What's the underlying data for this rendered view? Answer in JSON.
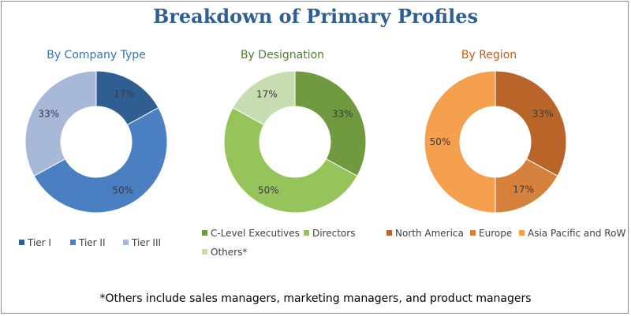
{
  "title": "Breakdown of Primary Profiles",
  "footnote": "*Others include sales managers, marketing managers, and product managers",
  "chart_data": [
    {
      "type": "pie",
      "title": "By Company Type",
      "donut": true,
      "legend_position": "bottom",
      "categories": [
        "Tier I",
        "Tier II",
        "Tier III"
      ],
      "values": [
        17,
        50,
        33
      ],
      "labels": [
        "17%",
        "50%",
        "33%"
      ],
      "colors": [
        "#2e5e92",
        "#4a7fc1",
        "#a8b8d8"
      ]
    },
    {
      "type": "pie",
      "title": "By Designation",
      "donut": true,
      "legend_position": "bottom",
      "categories": [
        "C-Level Executives",
        "Directors",
        "Others*"
      ],
      "values": [
        33,
        50,
        17
      ],
      "labels": [
        "33%",
        "50%",
        "17%"
      ],
      "colors": [
        "#6f9a3f",
        "#95c55a",
        "#c7dcb1"
      ]
    },
    {
      "type": "pie",
      "title": "By Region",
      "donut": true,
      "legend_position": "bottom",
      "categories": [
        "North America",
        "Europe",
        "Asia Pacific and RoW"
      ],
      "values": [
        33,
        17,
        50
      ],
      "labels": [
        "33%",
        "17%",
        "50%"
      ],
      "colors": [
        "#b9652a",
        "#d6813c",
        "#f4a04f"
      ]
    }
  ]
}
